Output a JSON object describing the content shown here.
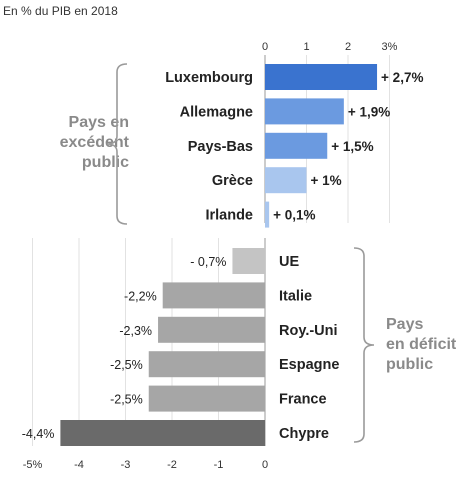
{
  "subtitle": "En % du PIB en 2018",
  "group_labels": {
    "surplus": [
      "Pays en",
      "excédent",
      "public"
    ],
    "deficit": [
      "Pays",
      "en déficit",
      "public"
    ]
  },
  "colors": {
    "surplus_bars": [
      "#3a73cf",
      "#6b9ae0",
      "#6b9ae0",
      "#a9c6ee",
      "#a9c6ee"
    ],
    "deficit_bars": [
      "#c4c4c4",
      "#a6a6a6",
      "#a6a6a6",
      "#a6a6a6",
      "#a6a6a6",
      "#6a6a6a"
    ],
    "brace": "#9a9a9a",
    "grid": "#e2e2e2"
  },
  "chart_data": {
    "type": "bar",
    "orientation": "horizontal",
    "unit": "% du PIB",
    "top_axis": {
      "ticks": [
        "0",
        "1",
        "2",
        "3%"
      ],
      "range": [
        0,
        3
      ]
    },
    "bottom_axis": {
      "ticks": [
        "-5%",
        "-4",
        "-3",
        "-2",
        "-1",
        "0"
      ],
      "range": [
        -5,
        0
      ]
    },
    "grid": true,
    "categories": [
      "Luxembourg",
      "Allemagne",
      "Pays-Bas",
      "Grèce",
      "Irlande",
      "UE",
      "Italie",
      "Roy.-Uni",
      "Espagne",
      "France",
      "Chypre"
    ],
    "values": [
      2.7,
      1.9,
      1.5,
      1.0,
      0.1,
      -0.7,
      -2.2,
      -2.3,
      -2.5,
      -2.5,
      -4.4
    ],
    "value_labels": [
      "+ 2,7%",
      "+ 1,9%",
      "+ 1,5%",
      "+ 1%",
      "+ 0,1%",
      "- 0,7%",
      "-2,2%",
      "-2,3%",
      "-2,5%",
      "-2,5%",
      "-4,4%"
    ]
  }
}
